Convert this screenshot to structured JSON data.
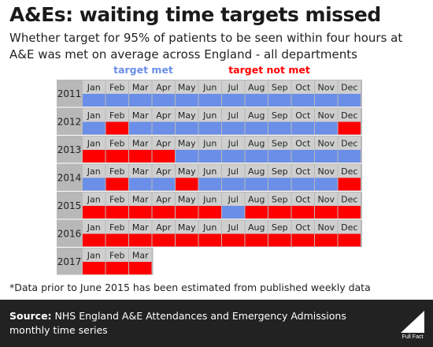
{
  "title": "A&Es: waiting time targets missed",
  "subtitle": "Whether target for 95% of patients to be seen within four hours at A&E was met on average across England - all departments",
  "footnote": "*Data prior to June 2015 has been estimated from published weekly data",
  "source": {
    "label": "Source:",
    "text": "NHS England A&E Attendances and Emergency Admissions monthly time series"
  },
  "logo_text": "Full Fact",
  "colors": {
    "met": "#6b8fe8",
    "not_met": "#ff0000",
    "panel": "#b8b8b8",
    "month_label_bg": "#cfcfcf"
  },
  "chart_data": {
    "type": "heatmap",
    "title": "A&Es: waiting time targets missed",
    "legend": {
      "met": "target met",
      "not_met": "target not met",
      "placement": "top"
    },
    "months": [
      "Jan",
      "Feb",
      "Mar",
      "Apr",
      "May",
      "Jun",
      "Jul",
      "Aug",
      "Sep",
      "Oct",
      "Nov",
      "Dec"
    ],
    "rows": [
      {
        "year": "2011",
        "status": [
          "met",
          "met",
          "met",
          "met",
          "met",
          "met",
          "met",
          "met",
          "met",
          "met",
          "met",
          "met"
        ]
      },
      {
        "year": "2012",
        "status": [
          "met",
          "not_met",
          "met",
          "met",
          "met",
          "met",
          "met",
          "met",
          "met",
          "met",
          "met",
          "not_met"
        ]
      },
      {
        "year": "2013",
        "status": [
          "not_met",
          "not_met",
          "not_met",
          "not_met",
          "met",
          "met",
          "met",
          "met",
          "met",
          "met",
          "met",
          "met"
        ]
      },
      {
        "year": "2014",
        "status": [
          "met",
          "not_met",
          "met",
          "met",
          "not_met",
          "met",
          "met",
          "met",
          "met",
          "met",
          "met",
          "not_met"
        ]
      },
      {
        "year": "2015",
        "status": [
          "not_met",
          "not_met",
          "not_met",
          "not_met",
          "not_met",
          "not_met",
          "met",
          "not_met",
          "not_met",
          "not_met",
          "not_met",
          "not_met"
        ]
      },
      {
        "year": "2016",
        "status": [
          "not_met",
          "not_met",
          "not_met",
          "not_met",
          "not_met",
          "not_met",
          "not_met",
          "not_met",
          "not_met",
          "not_met",
          "not_met",
          "not_met"
        ]
      },
      {
        "year": "2017",
        "status": [
          "not_met",
          "not_met",
          "not_met"
        ]
      }
    ]
  }
}
